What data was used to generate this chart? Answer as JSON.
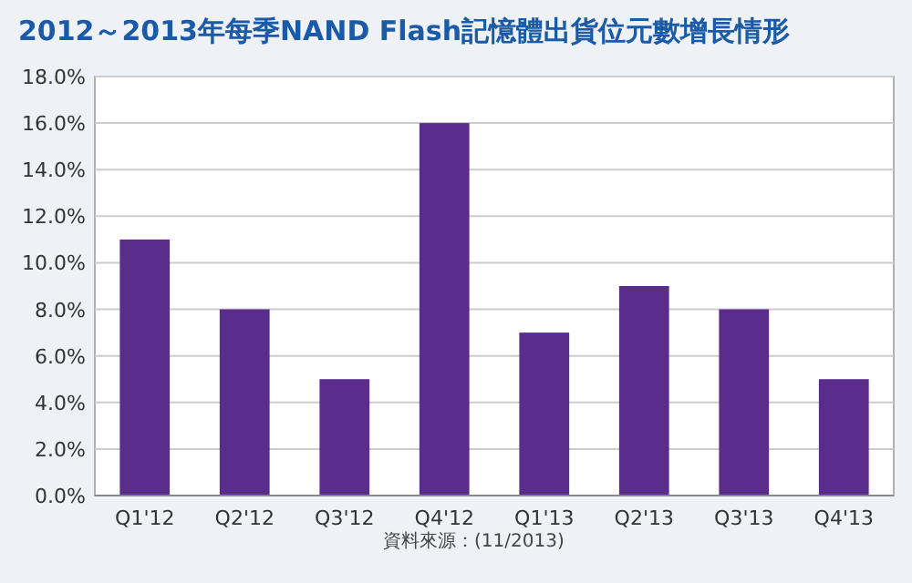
{
  "chart_data": {
    "type": "bar",
    "title": "2012～2013年每季NAND Flash記憶體出貨位元數增長情形",
    "categories": [
      "Q1'12",
      "Q2'12",
      "Q3'12",
      "Q4'12",
      "Q1'13",
      "Q2'13",
      "Q3'13",
      "Q4'13"
    ],
    "values": [
      11,
      8,
      5,
      16,
      7,
      9,
      8,
      5
    ],
    "color": "#5a2d8c",
    "ylim": [
      0,
      18
    ],
    "yticks": [
      {
        "value": 0,
        "label": "0.0%"
      },
      {
        "value": 2,
        "label": "2.0%"
      },
      {
        "value": 4,
        "label": "4.0%"
      },
      {
        "value": 6,
        "label": "6.0%"
      },
      {
        "value": 8,
        "label": "8.0%"
      },
      {
        "value": 10,
        "label": "10.0%"
      },
      {
        "value": 12,
        "label": "12.0%"
      },
      {
        "value": 14,
        "label": "14.0%"
      },
      {
        "value": 16,
        "label": "16.0%"
      },
      {
        "value": 18,
        "label": "18.0%"
      }
    ],
    "grid": "y",
    "annotations": [
      "資料來源：(11/2013)"
    ]
  }
}
